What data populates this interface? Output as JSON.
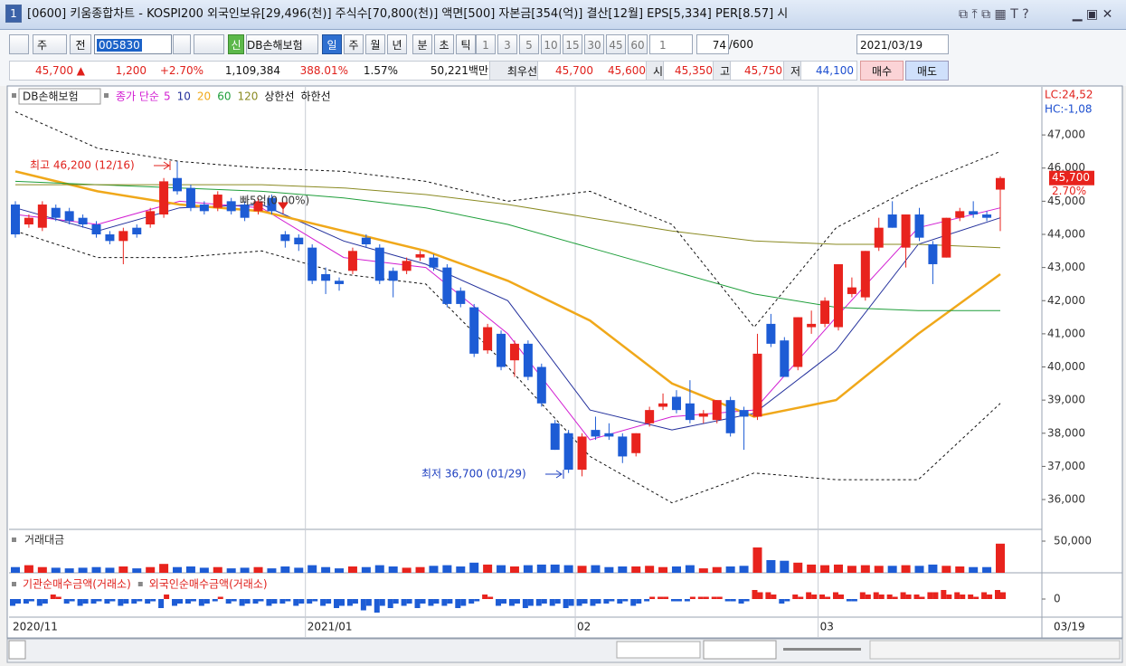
{
  "title_bar": {
    "window_number": "1",
    "text": "[0600] 키움종합차트 - KOSPI200 외국인보유[29,496(천)] 주식수[70,800(천)] 액면[500] 자본금[354(억)] 결산[12월] EPS[5,334] PER[8.57] 시"
  },
  "toolbar": {
    "period_type": "주",
    "market": "전",
    "code": "005830",
    "new_badge": "신",
    "name": "DB손해보험",
    "periods": [
      "일",
      "주",
      "월",
      "년",
      "분",
      "초",
      "틱"
    ],
    "intervals": [
      "1",
      "3",
      "5",
      "10",
      "15",
      "30",
      "45",
      "60"
    ],
    "interval_value": "1",
    "count": "74",
    "count_max": "/600",
    "date": "2021/03/19"
  },
  "quote": {
    "price": "45,700 ▲",
    "change": "1,200",
    "change_pct": "+2.70%",
    "volume": "1,109,384",
    "volume_ratio": "388.01%",
    "turnover": "1.57%",
    "amount": "50,221백만",
    "best_label": "최우선",
    "ask": "45,700",
    "bid": "45,600",
    "open_label": "시",
    "open": "45,350",
    "high_label": "고",
    "high": "45,750",
    "low_label": "저",
    "low": "44,100",
    "buy": "매수",
    "sell": "매도"
  },
  "chart": {
    "type": "candlestick",
    "legend_name": "DB손해보험",
    "legend_prefix": "종가 단순",
    "lc_label": "LC:24,52",
    "hc_label": "HC:-1,08",
    "price_tag": "45,700",
    "price_tag_pct": "2.70%",
    "up_color": "#e8231d",
    "down_color": "#1d5cd5",
    "high_note": "최고 46,200 (12/16)",
    "low_note": "최저 36,700 (01/29)",
    "mid_note": "빠5억(0.00%)",
    "ylim": [
      35100,
      48450
    ],
    "yticks": [
      {
        "value": 47000,
        "label": "47,000"
      },
      {
        "value": 46000,
        "label": "46,000"
      },
      {
        "value": 45000,
        "label": "45,000"
      },
      {
        "value": 44000,
        "label": "44,000"
      },
      {
        "value": 43000,
        "label": "43,000"
      },
      {
        "value": 42000,
        "label": "42,000"
      },
      {
        "value": 41000,
        "label": "41,000"
      },
      {
        "value": 40000,
        "label": "40,000"
      },
      {
        "value": 39000,
        "label": "39,000"
      },
      {
        "value": 38000,
        "label": "38,000"
      },
      {
        "value": 37000,
        "label": "37,000"
      },
      {
        "value": 36000,
        "label": "36,000"
      }
    ],
    "candles": [
      [
        44900,
        45000,
        43900,
        44000
      ],
      [
        44300,
        44600,
        44200,
        44500
      ],
      [
        44200,
        45000,
        44100,
        44900
      ],
      [
        44800,
        44900,
        44400,
        44500
      ],
      [
        44700,
        44800,
        44300,
        44400
      ],
      [
        44500,
        44600,
        44200,
        44300
      ],
      [
        44300,
        44400,
        43900,
        44000
      ],
      [
        44000,
        44100,
        43700,
        43800
      ],
      [
        43800,
        44200,
        43100,
        44100
      ],
      [
        44200,
        44300,
        43900,
        44000
      ],
      [
        44300,
        44800,
        44200,
        44700
      ],
      [
        44600,
        45700,
        44500,
        45600
      ],
      [
        45700,
        46200,
        45200,
        45300
      ],
      [
        45400,
        45500,
        44700,
        44800
      ],
      [
        44900,
        45000,
        44600,
        44700
      ],
      [
        44800,
        45300,
        44700,
        45200
      ],
      [
        45000,
        45100,
        44600,
        44700
      ],
      [
        44900,
        45000,
        44400,
        44500
      ],
      [
        44700,
        45100,
        44600,
        45000
      ],
      [
        45100,
        45200,
        44600,
        44700
      ],
      [
        44000,
        44100,
        43600,
        43800
      ],
      [
        43900,
        44000,
        43500,
        43700
      ],
      [
        43600,
        43700,
        42500,
        42600
      ],
      [
        42800,
        43000,
        42200,
        42600
      ],
      [
        42600,
        42700,
        42300,
        42500
      ],
      [
        42900,
        43600,
        42800,
        43500
      ],
      [
        43900,
        44000,
        43600,
        43700
      ],
      [
        43600,
        43700,
        42500,
        42600
      ],
      [
        42900,
        43000,
        42100,
        42600
      ],
      [
        42900,
        43300,
        42800,
        43200
      ],
      [
        43300,
        43500,
        43200,
        43400
      ],
      [
        43300,
        43400,
        42900,
        43000
      ],
      [
        43000,
        43100,
        41800,
        41900
      ],
      [
        42300,
        42400,
        41800,
        41900
      ],
      [
        41800,
        41900,
        40300,
        40400
      ],
      [
        40500,
        41300,
        40400,
        41200
      ],
      [
        41000,
        41100,
        39900,
        40000
      ],
      [
        40200,
        40800,
        39700,
        40700
      ],
      [
        40700,
        40800,
        39600,
        39700
      ],
      [
        40000,
        40100,
        38800,
        38900
      ],
      [
        38300,
        38400,
        37500,
        37500
      ],
      [
        38000,
        38100,
        36800,
        36900
      ],
      [
        36900,
        38000,
        36700,
        37900
      ],
      [
        38100,
        38500,
        37800,
        37900
      ],
      [
        38000,
        38300,
        37800,
        37900
      ],
      [
        37900,
        38000,
        37100,
        37300
      ],
      [
        37400,
        38000,
        37300,
        38000
      ],
      [
        38300,
        38800,
        38200,
        38700
      ],
      [
        38800,
        39200,
        38700,
        38900
      ],
      [
        39100,
        39300,
        38600,
        38700
      ],
      [
        38900,
        39600,
        38300,
        38400
      ],
      [
        38500,
        38700,
        38300,
        38600
      ],
      [
        38400,
        39000,
        38300,
        39000
      ],
      [
        39000,
        39100,
        37900,
        38000
      ],
      [
        38700,
        38800,
        37500,
        38500
      ],
      [
        38500,
        41000,
        38400,
        40400
      ],
      [
        41300,
        41600,
        40600,
        40700
      ],
      [
        40800,
        40900,
        39700,
        39700
      ],
      [
        40000,
        41500,
        39900,
        41500
      ],
      [
        41200,
        41700,
        41000,
        41300
      ],
      [
        41300,
        42100,
        41200,
        42000
      ],
      [
        41200,
        43100,
        41100,
        43100
      ],
      [
        42200,
        42700,
        42100,
        42400
      ],
      [
        42100,
        43500,
        42000,
        43500
      ],
      [
        43600,
        44500,
        43500,
        44200
      ],
      [
        44600,
        45000,
        44200,
        44200
      ],
      [
        43600,
        44600,
        43000,
        44600
      ],
      [
        44600,
        44800,
        43800,
        43900
      ],
      [
        43700,
        43800,
        42500,
        43100
      ],
      [
        43300,
        44500,
        43300,
        44500
      ],
      [
        44500,
        44800,
        44400,
        44700
      ],
      [
        44700,
        45000,
        44500,
        44600
      ],
      [
        44600,
        44700,
        44400,
        44500
      ],
      [
        45350,
        45750,
        44100,
        45700
      ]
    ],
    "categories": [
      "2020/11",
      null,
      null,
      null,
      null,
      null,
      null,
      null,
      null,
      null,
      null,
      null,
      null,
      null,
      null,
      null,
      null,
      null,
      null,
      null,
      null,
      null,
      "2021/01",
      null,
      null,
      null,
      null,
      null,
      null,
      null,
      null,
      null,
      null,
      null,
      null,
      null,
      null,
      null,
      null,
      null,
      null,
      null,
      "02",
      null,
      null,
      null,
      null,
      null,
      null,
      null,
      null,
      null,
      null,
      null,
      null,
      null,
      null,
      null,
      null,
      null,
      "03",
      null,
      null,
      null,
      null,
      null,
      null,
      null,
      null,
      null,
      null,
      null,
      null,
      null
    ],
    "last_date": "03/19",
    "lines": [
      {
        "name": "5",
        "color": "#d21fd2",
        "width": 1,
        "values": [
          44600,
          44300,
          45000,
          44800,
          43300,
          43000,
          41000,
          37800,
          38500,
          38700,
          41500,
          44200,
          44800
        ]
      },
      {
        "name": "10",
        "color": "#23309c",
        "width": 1,
        "values": [
          44800,
          44100,
          44800,
          44900,
          43800,
          43100,
          42000,
          38700,
          38100,
          38600,
          40500,
          43700,
          44500
        ]
      },
      {
        "name": "20",
        "color": "#f0a81a",
        "width": 2.5,
        "values": [
          45900,
          45300,
          44900,
          44700,
          44100,
          43500,
          42600,
          41400,
          39500,
          38500,
          39000,
          41000,
          42800
        ]
      },
      {
        "name": "60",
        "color": "#1e9e3a",
        "width": 1,
        "values": [
          45600,
          45500,
          45400,
          45300,
          45100,
          44800,
          44300,
          43600,
          42900,
          42200,
          41800,
          41700,
          41700
        ]
      },
      {
        "name": "120",
        "color": "#8a8a22",
        "width": 1,
        "values": [
          45500,
          45500,
          45500,
          45500,
          45400,
          45200,
          44900,
          44500,
          44100,
          43800,
          43700,
          43700,
          43600
        ]
      },
      {
        "name": "상한선",
        "color": "#111111",
        "width": 1,
        "dash": true,
        "values": [
          47700,
          46600,
          46200,
          46000,
          45900,
          45600,
          45000,
          45300,
          44300,
          41200,
          44200,
          45500,
          46500
        ]
      },
      {
        "name": "하한선",
        "color": "#111111",
        "width": 1,
        "dash": true,
        "values": [
          44100,
          43300,
          43300,
          43500,
          42800,
          42500,
          40000,
          37300,
          35900,
          36800,
          36600,
          36600,
          38900
        ]
      }
    ],
    "volume": {
      "title": "거래대금",
      "ylim": [
        0,
        64300
      ],
      "yticks": [
        {
          "value": 50000,
          "label": "50,000"
        }
      ],
      "values": [
        9000,
        12000,
        9000,
        8000,
        7000,
        8000,
        9000,
        8000,
        10000,
        7000,
        9000,
        14000,
        9000,
        10000,
        8000,
        9000,
        7000,
        8000,
        9000,
        7000,
        10000,
        8000,
        12000,
        9000,
        7000,
        10000,
        9000,
        12000,
        10000,
        8000,
        9000,
        11000,
        12000,
        10000,
        16000,
        13000,
        12000,
        10000,
        12000,
        13000,
        13000,
        12000,
        11000,
        12000,
        9000,
        10000,
        10000,
        11000,
        9000,
        10000,
        12000,
        7000,
        9000,
        10000,
        11000,
        40000,
        20000,
        19000,
        16000,
        13000,
        12000,
        13000,
        11000,
        12000,
        11000,
        11000,
        12000,
        11000,
        13000,
        11000,
        10000,
        9000,
        9000,
        46000
      ]
    },
    "netbuy": {
      "ylim": [
        -7.6,
        10.4
      ],
      "yticks": [
        0
      ],
      "series": [
        {
          "name": "기관순매수금액(거래소)",
          "values": [
            -3,
            -2,
            -3,
            2,
            -2,
            -3,
            -2,
            -2,
            -3,
            -2,
            -2,
            -4,
            -3,
            -2,
            -3,
            -1,
            -2,
            -3,
            -2,
            -3,
            -2,
            -3,
            -2,
            -3,
            -4,
            -3,
            -5,
            -6,
            -4,
            -3,
            -4,
            -3,
            -3,
            -4,
            -2,
            2,
            -3,
            -3,
            -4,
            -3,
            -3,
            -4,
            -3,
            -3,
            -2,
            -2,
            -3,
            -1,
            1,
            -1,
            -1,
            1,
            1,
            -1,
            -2,
            4,
            3,
            -2,
            2,
            3,
            2,
            3,
            -1,
            3,
            3,
            2,
            3,
            2,
            3,
            4,
            3,
            2,
            3,
            4
          ]
        },
        {
          "name": "외국인순매수금액(거래소)",
          "values": [
            -2,
            -1,
            -2,
            1,
            -1,
            -2,
            -1,
            -1,
            -2,
            -1,
            -1,
            2,
            -2,
            -1,
            -2,
            1,
            -1,
            -2,
            -1,
            -2,
            -1,
            -2,
            -1,
            -2,
            -3,
            -2,
            -3,
            -3,
            -2,
            -2,
            -2,
            -2,
            -2,
            -3,
            -1,
            1,
            -2,
            -2,
            -3,
            -2,
            -2,
            -3,
            -2,
            -2,
            -1,
            -1,
            -2,
            1,
            1,
            -1,
            1,
            1,
            1,
            -1,
            -1,
            3,
            2,
            -1,
            1,
            2,
            1,
            2,
            -1,
            2,
            2,
            1,
            2,
            1,
            3,
            2,
            2,
            1,
            2,
            3
          ]
        }
      ]
    }
  }
}
